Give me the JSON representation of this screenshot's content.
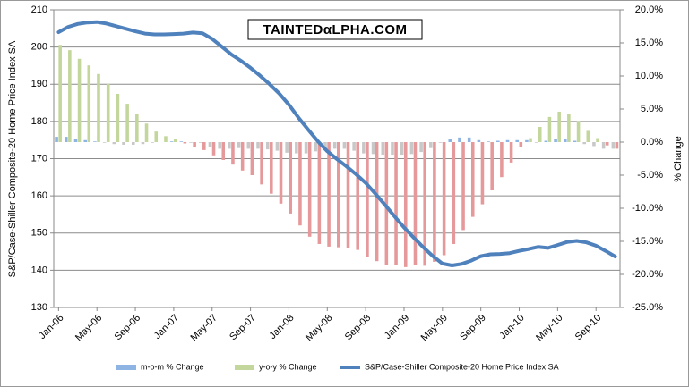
{
  "chart_data": {
    "type": "combo",
    "watermark": "TAINTEDαLPHA.COM",
    "ylabel": "S&P/Case-Shiller Composite-20 Home Price Index SA",
    "y2label": "% Change",
    "categories": [
      "Jan-06",
      null,
      null,
      null,
      "May-06",
      null,
      null,
      null,
      "Sep-06",
      null,
      null,
      null,
      "Jan-07",
      null,
      null,
      null,
      "May-07",
      null,
      null,
      null,
      "Sep-07",
      null,
      null,
      null,
      "Jan-08",
      null,
      null,
      null,
      "May-08",
      null,
      null,
      null,
      "Sep-08",
      null,
      null,
      null,
      "Jan-09",
      null,
      null,
      null,
      "May-09",
      null,
      null,
      null,
      "Sep-09",
      null,
      null,
      null,
      "Jan-10",
      null,
      null,
      null,
      "May-10",
      null,
      null,
      null,
      "Sep-10",
      null,
      null
    ],
    "ylim": [
      130,
      210
    ],
    "yticks": [
      130,
      140,
      150,
      160,
      170,
      180,
      190,
      200,
      210
    ],
    "y2lim": [
      -25,
      20
    ],
    "y2ticks": [
      {
        "value": -25,
        "label": "-25.0%"
      },
      {
        "value": -20,
        "label": "-20.0%"
      },
      {
        "value": -15,
        "label": "-15.0%"
      },
      {
        "value": -10,
        "label": "-10.0%"
      },
      {
        "value": -5,
        "label": "-5.0%"
      },
      {
        "value": 0,
        "label": "0.0%"
      },
      {
        "value": 5,
        "label": "5.0%"
      },
      {
        "value": 10,
        "label": "10.0%"
      },
      {
        "value": 15,
        "label": "15.0%"
      },
      {
        "value": 20,
        "label": "20.0%"
      }
    ],
    "grid": true,
    "series": [
      {
        "name": "m-o-m % Change",
        "type": "bar",
        "axis": "y2",
        "color": "#8eb4e3",
        "negative_color": "#c8c8c8",
        "values": [
          0.8,
          0.8,
          0.5,
          0.3,
          0.1,
          -0.1,
          -0.3,
          -0.4,
          -0.4,
          -0.3,
          -0.1,
          0.0,
          0.1,
          0.1,
          -0.1,
          -0.1,
          -0.7,
          -1.0,
          -1.0,
          -0.9,
          -1.0,
          -1.0,
          -1.1,
          -1.3,
          -1.6,
          -1.7,
          -1.7,
          -1.4,
          -1.2,
          -1.0,
          -1.0,
          -1.3,
          -1.7,
          -1.8,
          -1.9,
          -1.9,
          -1.9,
          -1.8,
          -1.5,
          -0.9,
          -0.1,
          0.5,
          0.7,
          0.7,
          0.3,
          0.1,
          0.2,
          0.3,
          0.3,
          0.3,
          -0.1,
          0.2,
          0.5,
          0.5,
          0.2,
          -0.3,
          -0.6,
          -1.0,
          -1.0
        ]
      },
      {
        "name": "y-o-y % Change",
        "type": "bar",
        "axis": "y2",
        "color": "#c3d69b",
        "negative_color": "#e6999a",
        "values": [
          14.7,
          13.9,
          12.6,
          11.6,
          10.3,
          8.8,
          7.3,
          5.8,
          4.2,
          2.8,
          1.6,
          0.9,
          0.4,
          -0.2,
          -0.7,
          -1.2,
          -2.0,
          -2.7,
          -3.4,
          -4.3,
          -5.0,
          -6.4,
          -7.8,
          -9.3,
          -10.8,
          -12.6,
          -14.3,
          -15.4,
          -15.8,
          -15.9,
          -16.0,
          -16.3,
          -17.3,
          -18.0,
          -18.6,
          -18.6,
          -18.9,
          -18.6,
          -18.7,
          -18.1,
          -17.1,
          -15.4,
          -13.3,
          -11.3,
          -9.4,
          -7.3,
          -5.3,
          -3.1,
          -0.7,
          0.6,
          2.3,
          3.8,
          4.6,
          4.2,
          3.2,
          1.7,
          0.6,
          -0.5,
          -1.0
        ]
      },
      {
        "name": "S&P/Case-Shiller Composite-20 Home Price Index SA",
        "type": "line",
        "axis": "y",
        "color": "#4f81bd",
        "values": [
          204.0,
          205.4,
          206.2,
          206.6,
          206.7,
          206.3,
          205.6,
          204.9,
          204.2,
          203.6,
          203.4,
          203.4,
          203.5,
          203.6,
          203.9,
          203.7,
          202.2,
          200.1,
          198.0,
          196.3,
          194.4,
          192.3,
          190.0,
          187.5,
          184.5,
          181.0,
          177.8,
          174.7,
          172.0,
          169.9,
          167.9,
          165.8,
          163.5,
          160.6,
          157.6,
          154.5,
          151.5,
          148.8,
          146.2,
          143.8,
          141.8,
          141.3,
          141.7,
          142.6,
          143.8,
          144.3,
          144.4,
          144.6,
          145.2,
          145.7,
          146.3,
          146.0,
          146.8,
          147.6,
          147.9,
          147.5,
          146.6,
          145.2,
          143.7
        ]
      }
    ]
  }
}
